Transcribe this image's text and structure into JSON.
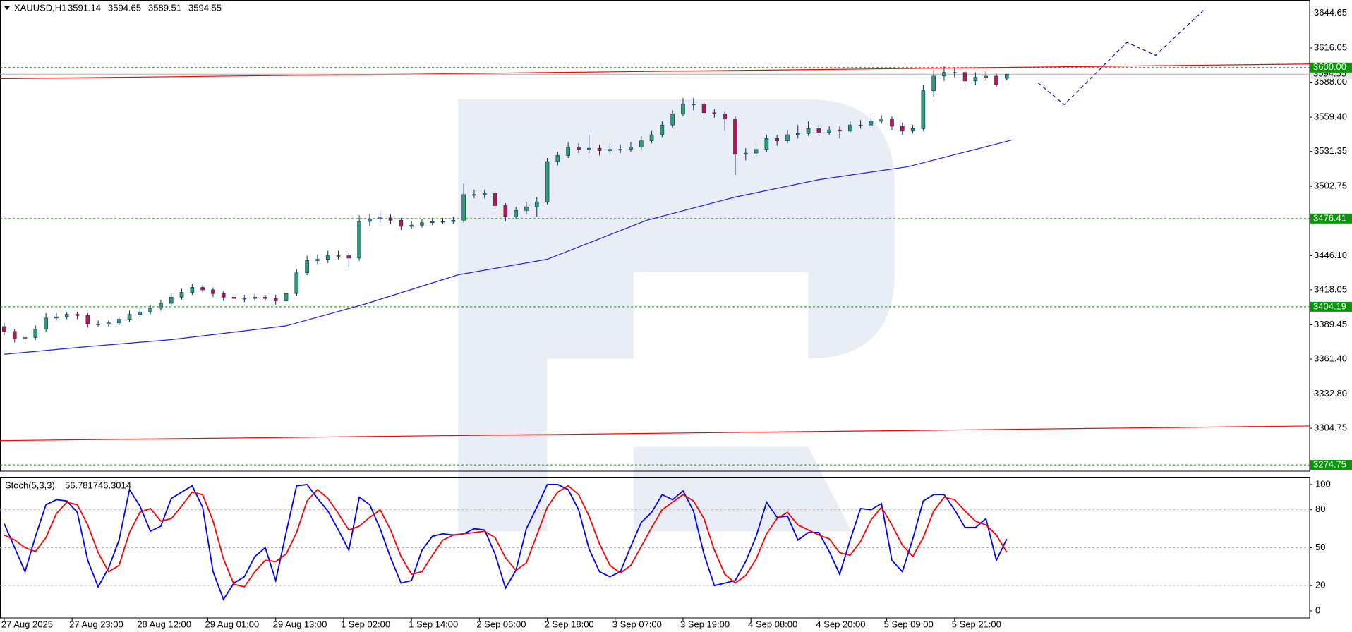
{
  "chart_data": [
    {
      "type": "candlestick",
      "symbol": "XAUUSD,H1",
      "up_color": "#2e9e6e",
      "down_color": "#c0144c",
      "wick_color": "#0b2a6b",
      "xlim": [
        -0.8,
        250
      ],
      "ylim": [
        3269.6,
        3655.3
      ],
      "yticks": [
        3644.65,
        3616.05,
        {
          "value": 3588,
          "label": "3588.00"
        },
        {
          "value": 3559.4,
          "label": "3559.40"
        },
        3531.35,
        3502.75,
        {
          "value": 3446.1,
          "label": "3446.10"
        },
        3418.05,
        3389.45,
        {
          "value": 3361.4,
          "label": "3361.40"
        },
        {
          "value": 3332.8,
          "label": "3332.80"
        },
        3304.75
      ],
      "xticks": [
        {
          "value": 0,
          "label": "27 Aug 2025"
        },
        {
          "value": 13,
          "label": "27 Aug 23:00"
        },
        {
          "value": 26,
          "label": "28 Aug 12:00"
        },
        {
          "value": 39,
          "label": "29 Aug 01:00"
        },
        {
          "value": 52,
          "label": "29 Aug 13:00"
        },
        {
          "value": 65,
          "label": "1 Sep 02:00"
        },
        {
          "value": 78,
          "label": "1 Sep 14:00"
        },
        {
          "value": 91,
          "label": "2 Sep 06:00"
        },
        {
          "value": 104,
          "label": "2 Sep 18:00"
        },
        {
          "value": 117,
          "label": "3 Sep 07:00"
        },
        {
          "value": 130,
          "label": "3 Sep 19:00"
        },
        {
          "value": 143,
          "label": "4 Sep 08:00"
        },
        {
          "value": 156,
          "label": "4 Sep 20:00"
        },
        {
          "value": 169,
          "label": "5 Sep 09:00"
        },
        {
          "value": 182,
          "label": "5 Sep 21:00"
        }
      ],
      "levels": [
        {
          "value": 3600,
          "label": "3600.00"
        },
        {
          "value": 3476.41,
          "label": "3476.41"
        },
        {
          "value": 3404.19,
          "label": "3404.19"
        },
        {
          "value": 3274.75,
          "label": "3274.75"
        }
      ],
      "level_color": "#009900",
      "x": [
        0,
        2,
        4,
        6,
        8,
        10,
        12,
        14,
        16,
        18,
        20,
        22,
        24,
        26,
        28,
        30,
        32,
        34,
        36,
        38,
        40,
        42,
        44,
        46,
        48,
        50,
        52,
        54,
        56,
        58,
        60,
        62,
        64,
        66,
        68,
        70,
        72,
        74,
        76,
        78,
        80,
        82,
        84,
        86,
        88,
        90,
        92,
        94,
        96,
        98,
        100,
        102,
        104,
        106,
        108,
        110,
        112,
        114,
        116,
        118,
        120,
        122,
        124,
        126,
        128,
        130,
        132,
        134,
        136,
        138,
        140,
        142,
        144,
        146,
        148,
        150,
        152,
        154,
        156,
        158,
        160,
        162,
        164,
        166,
        168,
        170,
        172,
        174,
        176,
        178,
        180,
        182,
        184,
        186,
        188,
        190,
        192
      ],
      "ohlc": [
        [
          3388,
          3391,
          3381,
          3384
        ],
        [
          3384,
          3386,
          3375,
          3378
        ],
        [
          3378,
          3382,
          3376,
          3379
        ],
        [
          3379,
          3389,
          3377,
          3386
        ],
        [
          3386,
          3399,
          3384,
          3395
        ],
        [
          3395,
          3399,
          3393,
          3396
        ],
        [
          3396,
          3400,
          3394,
          3398
        ],
        [
          3398,
          3400,
          3394,
          3397
        ],
        [
          3397,
          3399,
          3387,
          3390
        ],
        [
          3390,
          3393,
          3388,
          3390
        ],
        [
          3390,
          3393,
          3388,
          3391
        ],
        [
          3391,
          3396,
          3389,
          3394
        ],
        [
          3394,
          3401,
          3392,
          3398
        ],
        [
          3398,
          3403,
          3396,
          3400
        ],
        [
          3400,
          3406,
          3398,
          3403
        ],
        [
          3403,
          3410,
          3401,
          3407
        ],
        [
          3407,
          3415,
          3405,
          3412
        ],
        [
          3412,
          3419,
          3410,
          3416
        ],
        [
          3416,
          3423,
          3414,
          3420
        ],
        [
          3420,
          3422,
          3416,
          3418
        ],
        [
          3418,
          3420,
          3412,
          3415
        ],
        [
          3415,
          3417,
          3409,
          3412
        ],
        [
          3412,
          3414,
          3409,
          3411
        ],
        [
          3411,
          3414,
          3408,
          3411
        ],
        [
          3411,
          3415,
          3409,
          3412
        ],
        [
          3412,
          3414,
          3409,
          3411
        ],
        [
          3411,
          3414,
          3406,
          3409
        ],
        [
          3409,
          3418,
          3407,
          3415
        ],
        [
          3415,
          3435,
          3413,
          3432
        ],
        [
          3432,
          3446,
          3430,
          3442
        ],
        [
          3442,
          3447,
          3439,
          3443
        ],
        [
          3443,
          3450,
          3440,
          3446
        ],
        [
          3446,
          3450,
          3443,
          3446
        ],
        [
          3446,
          3448,
          3437,
          3444
        ],
        [
          3444,
          3479,
          3442,
          3474
        ],
        [
          3474,
          3480,
          3470,
          3476
        ],
        [
          3476,
          3481,
          3473,
          3477
        ],
        [
          3477,
          3480,
          3472,
          3475
        ],
        [
          3475,
          3477,
          3467,
          3470
        ],
        [
          3470,
          3474,
          3468,
          3471
        ],
        [
          3471,
          3476,
          3469,
          3473
        ],
        [
          3473,
          3477,
          3471,
          3474
        ],
        [
          3474,
          3477,
          3472,
          3474
        ],
        [
          3474,
          3478,
          3472,
          3475
        ],
        [
          3475,
          3505,
          3473,
          3496
        ],
        [
          3496,
          3500,
          3493,
          3496
        ],
        [
          3496,
          3500,
          3493,
          3497
        ],
        [
          3497,
          3499,
          3484,
          3487
        ],
        [
          3487,
          3489,
          3474,
          3478
        ],
        [
          3478,
          3486,
          3476,
          3483
        ],
        [
          3483,
          3490,
          3480,
          3486
        ],
        [
          3486,
          3494,
          3478,
          3490
        ],
        [
          3490,
          3526,
          3488,
          3523
        ],
        [
          3523,
          3531,
          3520,
          3528
        ],
        [
          3528,
          3539,
          3526,
          3535
        ],
        [
          3535,
          3538,
          3530,
          3533
        ],
        [
          3533,
          3545,
          3530,
          3534
        ],
        [
          3534,
          3537,
          3528,
          3532
        ],
        [
          3532,
          3538,
          3530,
          3533
        ],
        [
          3533,
          3537,
          3530,
          3533
        ],
        [
          3533,
          3539,
          3531,
          3535
        ],
        [
          3535,
          3544,
          3533,
          3540
        ],
        [
          3540,
          3548,
          3538,
          3545
        ],
        [
          3545,
          3556,
          3543,
          3553
        ],
        [
          3553,
          3565,
          3551,
          3562
        ],
        [
          3562,
          3575,
          3560,
          3570
        ],
        [
          3570,
          3575,
          3565,
          3570
        ],
        [
          3570,
          3572,
          3560,
          3563
        ],
        [
          3563,
          3566,
          3559,
          3562
        ],
        [
          3562,
          3564,
          3548,
          3558
        ],
        [
          3558,
          3560,
          3512,
          3529
        ],
        [
          3529,
          3534,
          3524,
          3530
        ],
        [
          3530,
          3538,
          3527,
          3533
        ],
        [
          3533,
          3545,
          3531,
          3542
        ],
        [
          3542,
          3545,
          3536,
          3540
        ],
        [
          3540,
          3549,
          3538,
          3545
        ],
        [
          3545,
          3553,
          3542,
          3546
        ],
        [
          3546,
          3556,
          3544,
          3550
        ],
        [
          3550,
          3553,
          3544,
          3547
        ],
        [
          3547,
          3552,
          3545,
          3549
        ],
        [
          3549,
          3552,
          3542,
          3548
        ],
        [
          3548,
          3556,
          3546,
          3553
        ],
        [
          3553,
          3557,
          3550,
          3553
        ],
        [
          3553,
          3559,
          3551,
          3556
        ],
        [
          3556,
          3561,
          3554,
          3558
        ],
        [
          3558,
          3560,
          3549,
          3552
        ],
        [
          3552,
          3555,
          3545,
          3548
        ],
        [
          3548,
          3553,
          3546,
          3550
        ],
        [
          3550,
          3586,
          3548,
          3581
        ],
        [
          3581,
          3598,
          3576,
          3593
        ],
        [
          3593,
          3601,
          3589,
          3596
        ],
        [
          3596,
          3600,
          3592,
          3596
        ],
        [
          3596,
          3598,
          3583,
          3589
        ],
        [
          3589,
          3596,
          3586,
          3592
        ],
        [
          3592,
          3597,
          3589,
          3593
        ],
        [
          3593,
          3595,
          3584,
          3586
        ],
        [
          3591.14,
          3594.65,
          3589.51,
          3594.55
        ]
      ],
      "overlays": [
        {
          "style": "solid",
          "color": "#2020e0",
          "x": [
            0,
            16,
            32,
            54,
            69,
            87,
            104,
            123,
            140,
            156,
            173,
            193
          ],
          "values": [
            3365.3,
            3371.6,
            3377.3,
            3388.6,
            3406.3,
            3430.4,
            3443.1,
            3474.9,
            3494.0,
            3508.2,
            3518.8,
            3540.7
          ]
        },
        {
          "style": "solid",
          "color": "#ff0000",
          "x": [
            -0.8,
            250
          ],
          "values": [
            3590.9,
            3602.9
          ]
        },
        {
          "style": "solid",
          "color": "#ff0000",
          "x": [
            -0.8,
            250
          ],
          "values": [
            3294.6,
            3306.6
          ]
        },
        {
          "style": "dashed",
          "color": "#0000ff",
          "x": [
            198,
            203,
            215,
            220.5,
            230
          ],
          "values": [
            3587.4,
            3569.7,
            3620.6,
            3610.0,
            3648.2
          ]
        }
      ]
    },
    {
      "type": "line",
      "title": "Stoch(5,3,3)",
      "ylim": [
        -5.6,
        106.1
      ],
      "yticks": [
        0,
        20,
        50,
        80,
        100
      ],
      "grid_levels": [
        20,
        50,
        80
      ],
      "series": [
        {
          "color": "#0000ff",
          "values": [
            69,
            50,
            31,
            59,
            84,
            88,
            87,
            78,
            40,
            19,
            34,
            56,
            96,
            83,
            63,
            67,
            89,
            94,
            99,
            82,
            31,
            9,
            22,
            27,
            43,
            50,
            24,
            62,
            99,
            100,
            89,
            79,
            64,
            48,
            90,
            84,
            65,
            42,
            22,
            24,
            48,
            59,
            61,
            60,
            61,
            65,
            64,
            45,
            18,
            32,
            65,
            82,
            100,
            100,
            96,
            80,
            49,
            31,
            27,
            31,
            51,
            70,
            78,
            92,
            88,
            95,
            79,
            45,
            20,
            22,
            24,
            39,
            59,
            86,
            74,
            75,
            56,
            62,
            62,
            47,
            29,
            56,
            81,
            80,
            85,
            40,
            31,
            57,
            87,
            92,
            92,
            80,
            66,
            66,
            73,
            40,
            56.7817
          ]
        },
        {
          "color": "#ff0000",
          "values": [
            60,
            56,
            50,
            47,
            58,
            77,
            86,
            84,
            68,
            46,
            31,
            36,
            62,
            78,
            81,
            71,
            73,
            83,
            94,
            92,
            71,
            41,
            21,
            19,
            31,
            40,
            39,
            45,
            62,
            87,
            96,
            89,
            77,
            64,
            67,
            74,
            80,
            64,
            43,
            29,
            31,
            44,
            56,
            60,
            61,
            62,
            63,
            58,
            42,
            32,
            38,
            60,
            82,
            94,
            99,
            92,
            75,
            53,
            36,
            30,
            36,
            51,
            66,
            80,
            86,
            92,
            87,
            73,
            48,
            29,
            22,
            28,
            41,
            61,
            73,
            78,
            68,
            64,
            60,
            57,
            46,
            44,
            55,
            72,
            82,
            68,
            52,
            43,
            58,
            79,
            90,
            88,
            79,
            71,
            68,
            60,
            46.3014
          ]
        }
      ]
    }
  ]
}
